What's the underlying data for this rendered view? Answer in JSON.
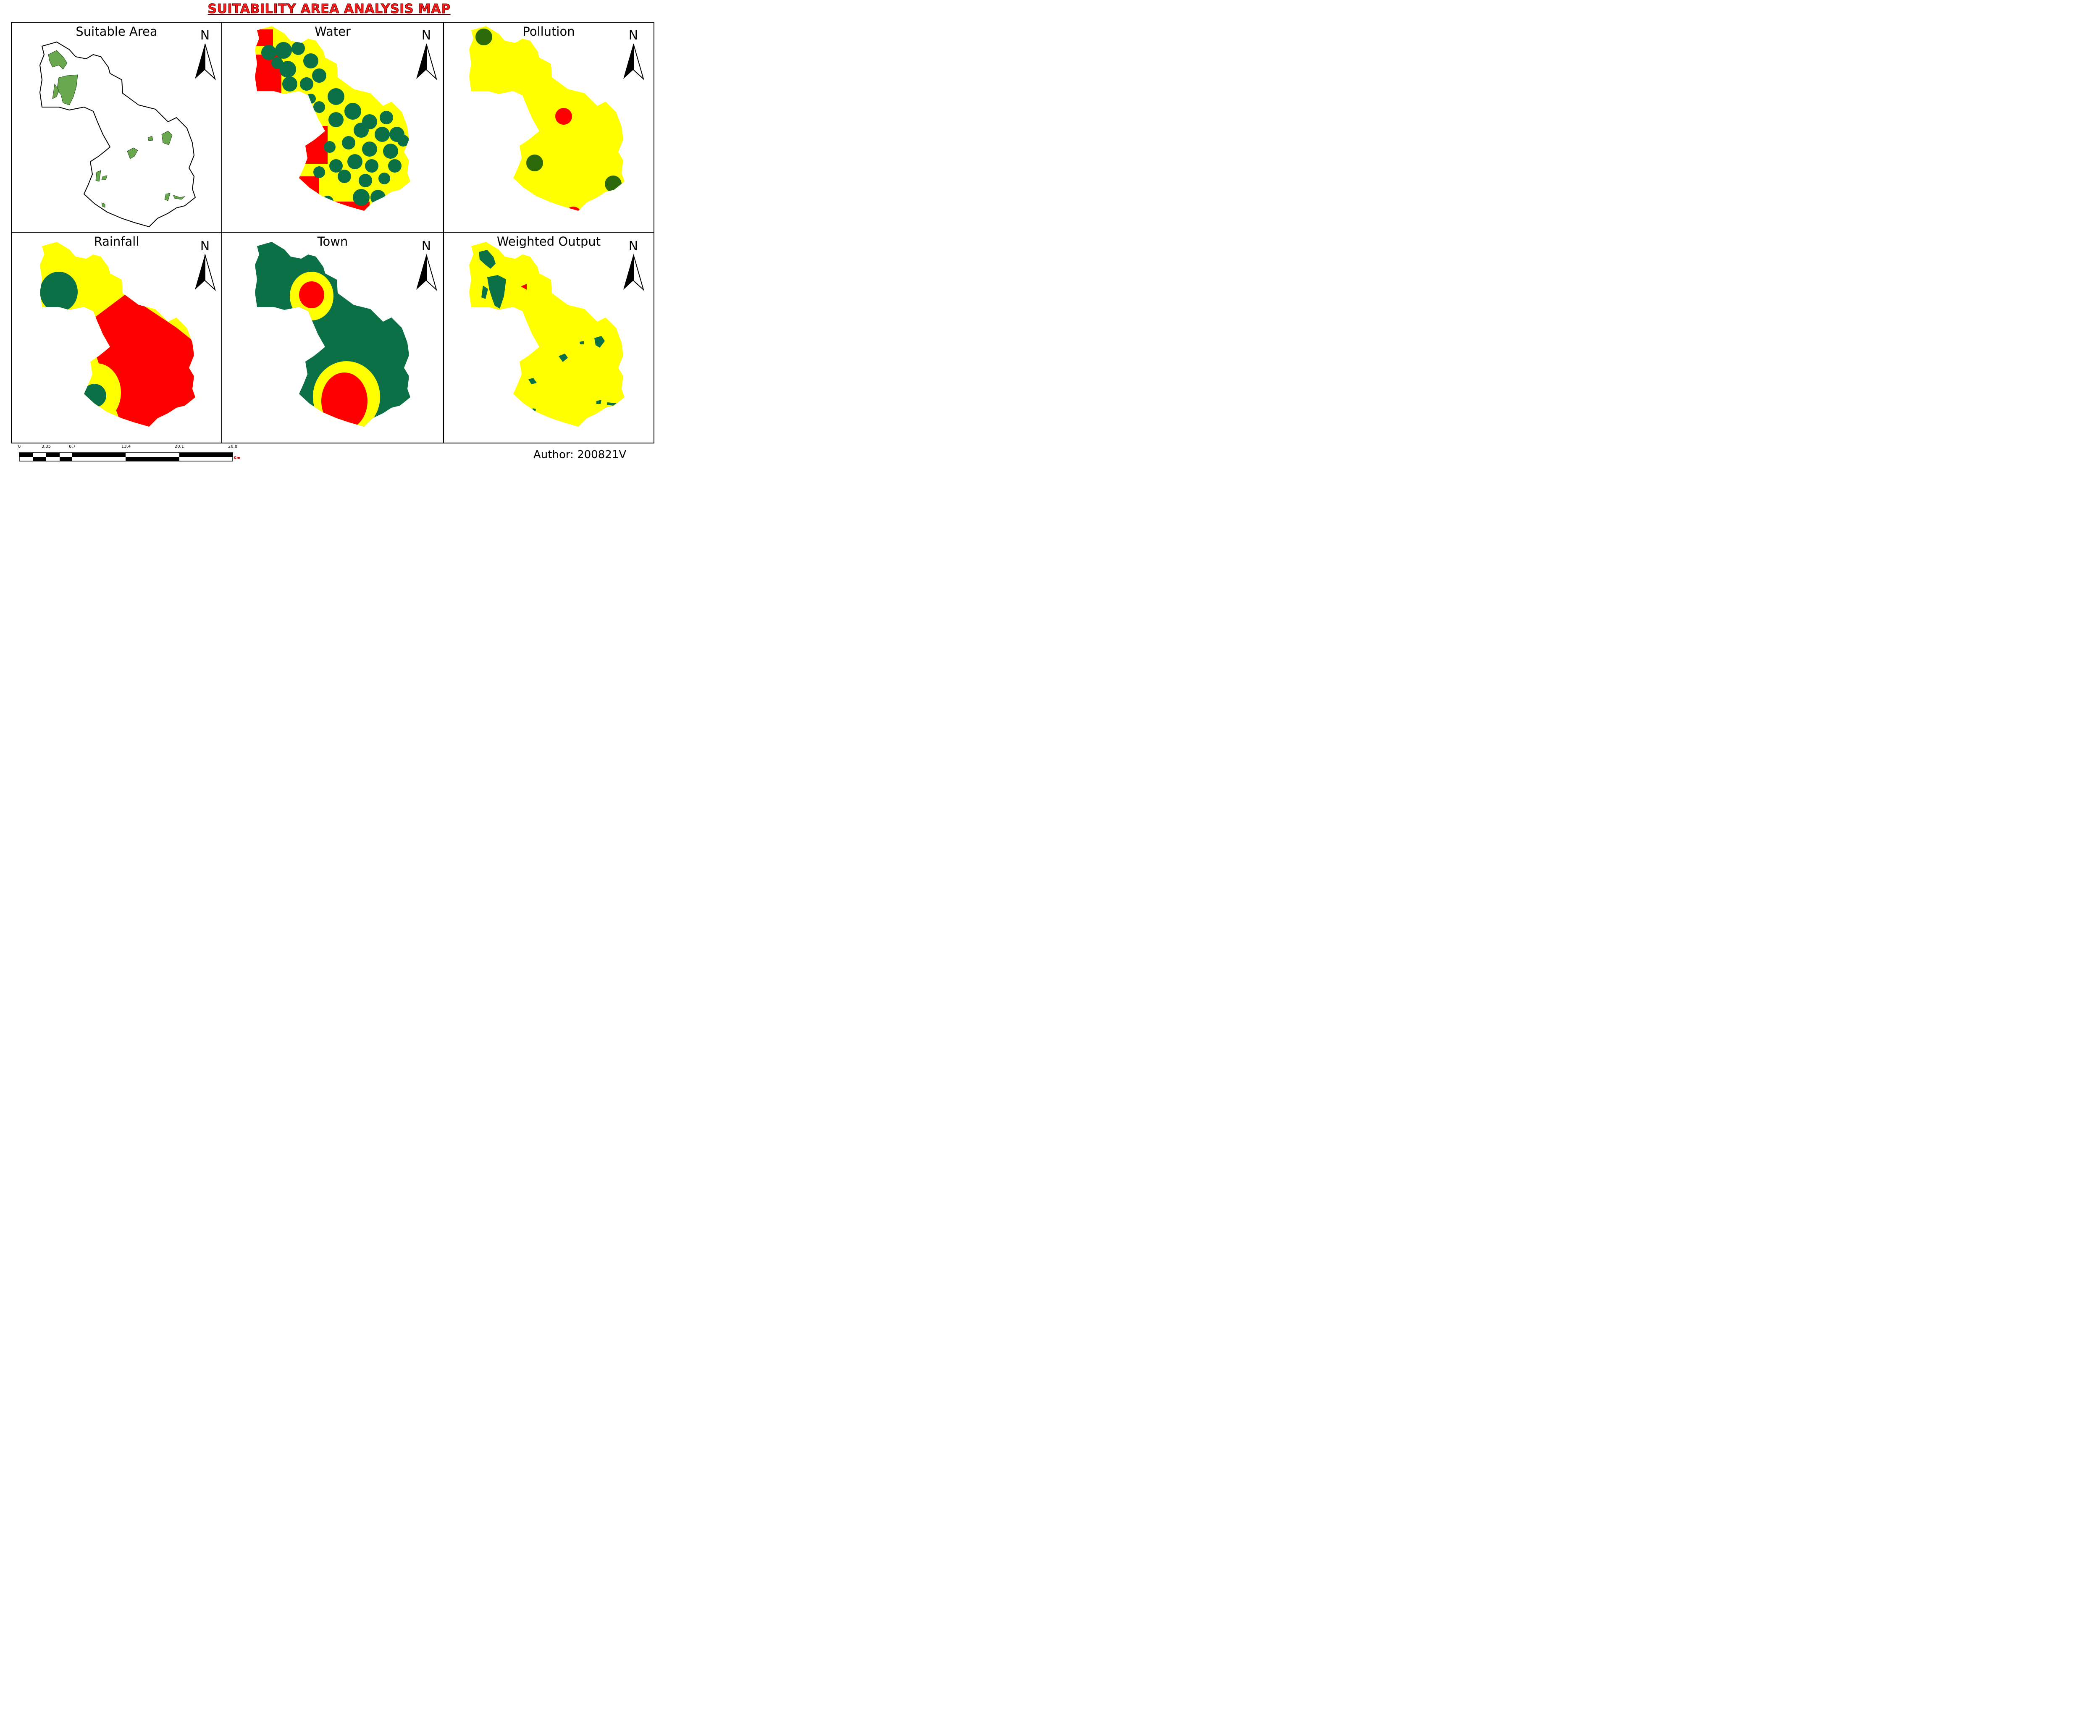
{
  "title": "SUITABILITY AREA ANALYSIS MAP",
  "panels": [
    {
      "title": "Suitable Area"
    },
    {
      "title": "Water"
    },
    {
      "title": "Pollution"
    },
    {
      "title": "Rainfall"
    },
    {
      "title": "Town"
    },
    {
      "title": "Weighted Output"
    }
  ],
  "north_label": "N",
  "colors": {
    "high": "#0b7046",
    "medium": "#ffff00",
    "low": "#ff0000",
    "suitable": "#6aa84f",
    "pollution_green": "#2d6a0a"
  },
  "scale_bar": {
    "labels": [
      "0",
      "3.35",
      "6.7",
      "13.4",
      "20.1",
      "26.8"
    ],
    "unit": "Km"
  },
  "author": "Author: 200821V"
}
